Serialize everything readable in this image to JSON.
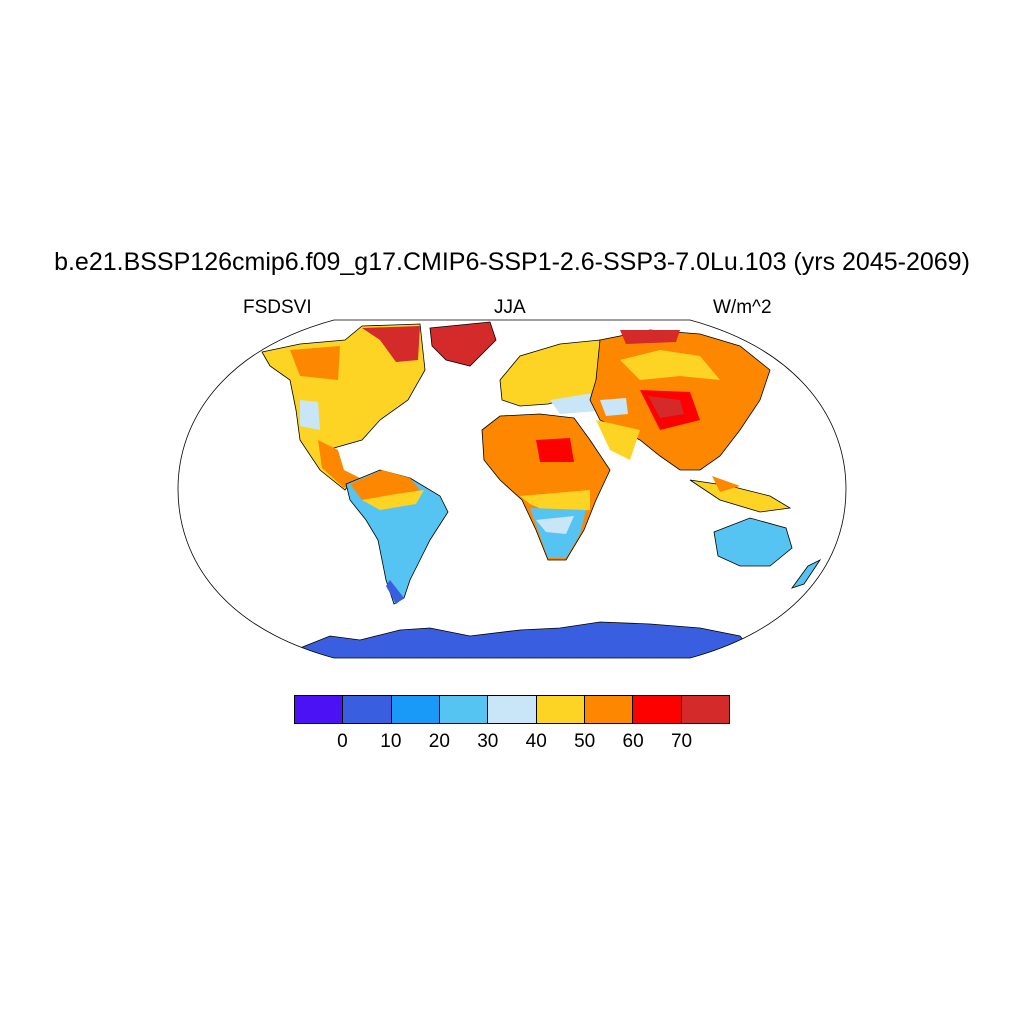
{
  "title": "b.e21.BSSP126cmip6.f09_g17.CMIP6-SSP1-2.6-SSP3-7.0Lu.103 (yrs 2045-2069)",
  "left_string": "FSDSVI",
  "center_string": "JJA",
  "right_string": "W/m^2",
  "colorbar": {
    "colors": [
      "#4a12f5",
      "#3a5ee0",
      "#1a9af8",
      "#56c4f3",
      "#c8e6f7",
      "#fdd423",
      "#fd8800",
      "#fd0000",
      "#d42a2a"
    ],
    "labels": [
      "0",
      "10",
      "20",
      "30",
      "40",
      "50",
      "60",
      "70"
    ]
  }
}
